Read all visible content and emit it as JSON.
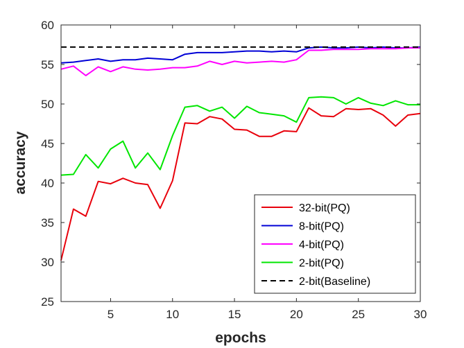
{
  "chart_data": {
    "type": "line",
    "title": "",
    "xlabel": "epochs",
    "ylabel": "accuracy",
    "xlim": [
      1,
      30
    ],
    "ylim": [
      25,
      60
    ],
    "xticks": [
      5,
      10,
      15,
      20,
      25,
      30
    ],
    "yticks": [
      25,
      30,
      35,
      40,
      45,
      50,
      55,
      60
    ],
    "grid": false,
    "legend_position": "bottom-right",
    "x": [
      1,
      2,
      3,
      4,
      5,
      6,
      7,
      8,
      9,
      10,
      11,
      12,
      13,
      14,
      15,
      16,
      17,
      18,
      19,
      20,
      21,
      22,
      23,
      24,
      25,
      26,
      27,
      28,
      29,
      30
    ],
    "series": [
      {
        "name": "32-bit(PQ)",
        "color": "#e8000b",
        "dash": "solid",
        "values": [
          30.2,
          36.7,
          35.8,
          40.2,
          39.9,
          40.6,
          40.0,
          39.8,
          36.8,
          40.3,
          47.6,
          47.5,
          48.4,
          48.1,
          46.8,
          46.7,
          45.9,
          45.9,
          46.6,
          46.5,
          49.5,
          48.5,
          48.4,
          49.4,
          49.3,
          49.4,
          48.6,
          47.2,
          48.6,
          48.8
        ]
      },
      {
        "name": "8-bit(PQ)",
        "color": "#0000d6",
        "dash": "solid",
        "values": [
          55.2,
          55.3,
          55.5,
          55.7,
          55.4,
          55.6,
          55.6,
          55.8,
          55.7,
          55.6,
          56.3,
          56.5,
          56.5,
          56.5,
          56.6,
          56.7,
          56.7,
          56.6,
          56.7,
          56.6,
          57.1,
          57.2,
          57.1,
          57.1,
          57.2,
          57.1,
          57.2,
          57.1,
          57.1,
          57.2
        ]
      },
      {
        "name": "4-bit(PQ)",
        "color": "#ff00ff",
        "dash": "solid",
        "values": [
          54.4,
          54.8,
          53.6,
          54.7,
          54.1,
          54.7,
          54.4,
          54.3,
          54.4,
          54.6,
          54.6,
          54.8,
          55.4,
          55.0,
          55.4,
          55.2,
          55.3,
          55.4,
          55.3,
          55.6,
          56.8,
          56.8,
          56.9,
          56.9,
          56.9,
          57.0,
          57.0,
          57.0,
          57.1,
          57.1
        ]
      },
      {
        "name": "2-bit(PQ)",
        "color": "#00e600",
        "dash": "solid",
        "values": [
          41.0,
          41.1,
          43.6,
          41.9,
          44.3,
          45.3,
          41.9,
          43.8,
          41.7,
          46.0,
          49.6,
          49.8,
          49.1,
          49.6,
          48.2,
          49.7,
          48.9,
          48.7,
          48.5,
          47.7,
          50.8,
          50.9,
          50.8,
          50.0,
          50.8,
          50.1,
          49.8,
          50.4,
          49.9,
          49.9
        ]
      },
      {
        "name": "2-bit(Baseline)",
        "color": "#000000",
        "dash": "dashed",
        "values": [
          57.2,
          57.2,
          57.2,
          57.2,
          57.2,
          57.2,
          57.2,
          57.2,
          57.2,
          57.2,
          57.2,
          57.2,
          57.2,
          57.2,
          57.2,
          57.2,
          57.2,
          57.2,
          57.2,
          57.2,
          57.2,
          57.2,
          57.2,
          57.2,
          57.2,
          57.2,
          57.2,
          57.2,
          57.2,
          57.2
        ]
      }
    ]
  }
}
